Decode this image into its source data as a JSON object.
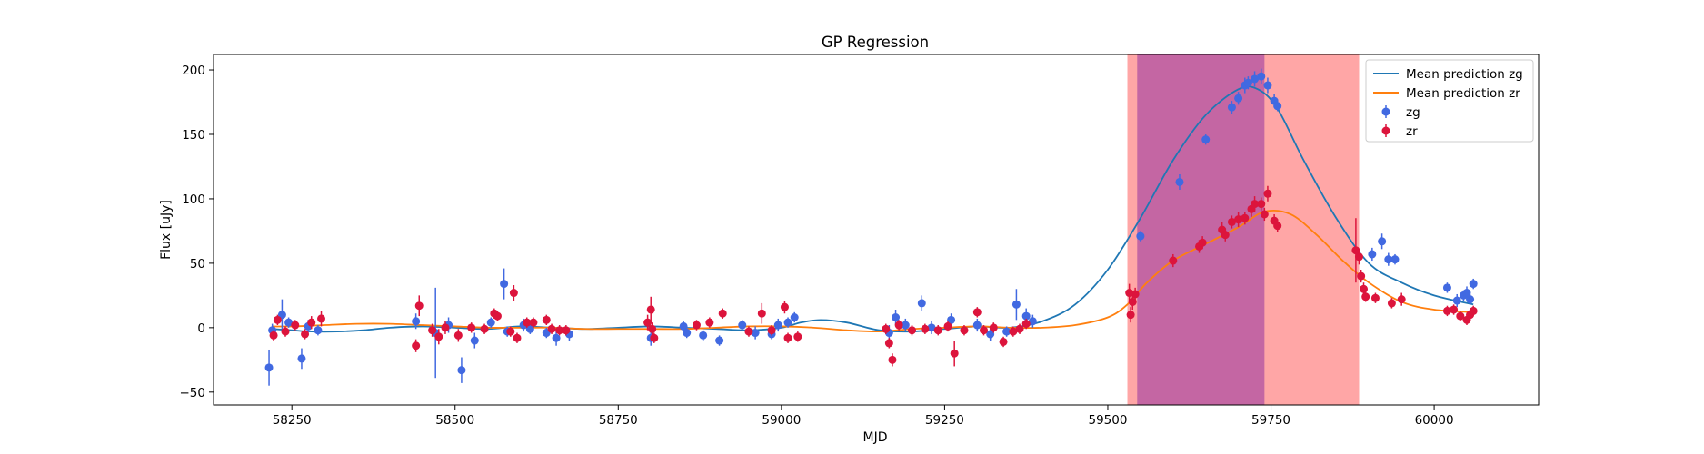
{
  "chart_data": {
    "type": "scatter",
    "title": "GP Regression",
    "xlabel": "MJD",
    "ylabel": "Flux [uJy]",
    "xlim": [
      58130,
      60160
    ],
    "ylim": [
      -60,
      212
    ],
    "xticks": [
      58250,
      58500,
      58750,
      59000,
      59250,
      59500,
      59750,
      60000
    ],
    "yticks": [
      -50,
      0,
      50,
      100,
      150,
      200
    ],
    "legend_position": "top-right",
    "grid": false,
    "shaded_regions": [
      {
        "x0": 59530,
        "x1": 59885,
        "color": "#ffa6a6"
      },
      {
        "x0": 59545,
        "x1": 59740,
        "color": "#c466a3"
      }
    ],
    "colors": {
      "zg_line": "#1f77b4",
      "zr_line": "#ff7f0e",
      "zg_points": "#4169e1",
      "zr_points": "#dc143c"
    },
    "lines": [
      {
        "name": "Mean prediction zg",
        "color": "#1f77b4",
        "x": [
          58220,
          58250,
          58280,
          58320,
          58360,
          58400,
          58450,
          58500,
          58550,
          58600,
          58650,
          58700,
          58750,
          58800,
          58850,
          58900,
          58950,
          59000,
          59030,
          59060,
          59100,
          59150,
          59200,
          59250,
          59300,
          59350,
          59400,
          59450,
          59500,
          59550,
          59600,
          59650,
          59700,
          59730,
          59760,
          59800,
          59850,
          59900,
          59950,
          60000,
          60060
        ],
        "y": [
          -1,
          -2,
          -3,
          -3,
          -2,
          0,
          1,
          0,
          -1,
          1,
          0,
          -1,
          0,
          1,
          0,
          -1,
          -2,
          0,
          4,
          6,
          4,
          -2,
          -3,
          -1,
          1,
          0,
          5,
          18,
          45,
          85,
          130,
          165,
          185,
          185,
          170,
          130,
          85,
          50,
          35,
          25,
          18
        ]
      },
      {
        "name": "Mean prediction zr",
        "color": "#ff7f0e",
        "x": [
          58220,
          58250,
          58300,
          58350,
          58400,
          58450,
          58500,
          58550,
          58600,
          58650,
          58700,
          58750,
          58800,
          58850,
          58900,
          58950,
          59000,
          59050,
          59100,
          59150,
          59200,
          59250,
          59300,
          59350,
          59400,
          59450,
          59500,
          59530,
          59560,
          59600,
          59650,
          59700,
          59740,
          59780,
          59820,
          59860,
          59900,
          59950,
          60000,
          60060
        ],
        "y": [
          1,
          1,
          2,
          3,
          3,
          2,
          1,
          0,
          0,
          0,
          -1,
          -1,
          -1,
          -1,
          0,
          1,
          1,
          0,
          -2,
          -3,
          -1,
          0,
          1,
          0,
          0,
          2,
          8,
          18,
          35,
          52,
          65,
          78,
          90,
          88,
          72,
          52,
          35,
          20,
          14,
          12
        ]
      }
    ],
    "series": [
      {
        "name": "zg",
        "color": "#4169e1",
        "points": [
          {
            "x": 58215,
            "y": -31,
            "err": 14
          },
          {
            "x": 58220,
            "y": -2,
            "err": 5
          },
          {
            "x": 58235,
            "y": 10,
            "err": 12
          },
          {
            "x": 58245,
            "y": 4,
            "err": 4
          },
          {
            "x": 58265,
            "y": -24,
            "err": 8
          },
          {
            "x": 58275,
            "y": 1,
            "err": 5
          },
          {
            "x": 58290,
            "y": -2,
            "err": 4
          },
          {
            "x": 58440,
            "y": 5,
            "err": 6
          },
          {
            "x": 58470,
            "y": -4,
            "err": 35
          },
          {
            "x": 58490,
            "y": 2,
            "err": 6
          },
          {
            "x": 58510,
            "y": -33,
            "err": 10
          },
          {
            "x": 58530,
            "y": -10,
            "err": 6
          },
          {
            "x": 58555,
            "y": 4,
            "err": 4
          },
          {
            "x": 58575,
            "y": 34,
            "err": 12
          },
          {
            "x": 58580,
            "y": -3,
            "err": 4
          },
          {
            "x": 58605,
            "y": 2,
            "err": 5
          },
          {
            "x": 58615,
            "y": -1,
            "err": 4
          },
          {
            "x": 58640,
            "y": -4,
            "err": 4
          },
          {
            "x": 58655,
            "y": -8,
            "err": 6
          },
          {
            "x": 58675,
            "y": -5,
            "err": 5
          },
          {
            "x": 58800,
            "y": -8,
            "err": 6
          },
          {
            "x": 58850,
            "y": 1,
            "err": 4
          },
          {
            "x": 58855,
            "y": -4,
            "err": 4
          },
          {
            "x": 58880,
            "y": -6,
            "err": 4
          },
          {
            "x": 58905,
            "y": -10,
            "err": 4
          },
          {
            "x": 58940,
            "y": 2,
            "err": 4
          },
          {
            "x": 58960,
            "y": -4,
            "err": 5
          },
          {
            "x": 58985,
            "y": -5,
            "err": 4
          },
          {
            "x": 58995,
            "y": 2,
            "err": 5
          },
          {
            "x": 59010,
            "y": 4,
            "err": 4
          },
          {
            "x": 59020,
            "y": 8,
            "err": 4
          },
          {
            "x": 59165,
            "y": -4,
            "err": 6
          },
          {
            "x": 59175,
            "y": 8,
            "err": 6
          },
          {
            "x": 59190,
            "y": 2,
            "err": 5
          },
          {
            "x": 59215,
            "y": 19,
            "err": 6
          },
          {
            "x": 59230,
            "y": 0,
            "err": 5
          },
          {
            "x": 59260,
            "y": 6,
            "err": 5
          },
          {
            "x": 59300,
            "y": 2,
            "err": 5
          },
          {
            "x": 59320,
            "y": -5,
            "err": 5
          },
          {
            "x": 59345,
            "y": -3,
            "err": 4
          },
          {
            "x": 59360,
            "y": 18,
            "err": 12
          },
          {
            "x": 59375,
            "y": 9,
            "err": 6
          },
          {
            "x": 59385,
            "y": 5,
            "err": 5
          },
          {
            "x": 59550,
            "y": 71,
            "err": 4
          },
          {
            "x": 59610,
            "y": 113,
            "err": 6
          },
          {
            "x": 59650,
            "y": 146,
            "err": 4
          },
          {
            "x": 59690,
            "y": 171,
            "err": 5
          },
          {
            "x": 59700,
            "y": 178,
            "err": 5
          },
          {
            "x": 59710,
            "y": 188,
            "err": 6
          },
          {
            "x": 59715,
            "y": 190,
            "err": 5
          },
          {
            "x": 59725,
            "y": 193,
            "err": 6
          },
          {
            "x": 59735,
            "y": 195,
            "err": 6
          },
          {
            "x": 59745,
            "y": 188,
            "err": 6
          },
          {
            "x": 59755,
            "y": 176,
            "err": 5
          },
          {
            "x": 59760,
            "y": 172,
            "err": 4
          },
          {
            "x": 59905,
            "y": 57,
            "err": 5
          },
          {
            "x": 59920,
            "y": 67,
            "err": 6
          },
          {
            "x": 59930,
            "y": 53,
            "err": 5
          },
          {
            "x": 59940,
            "y": 53,
            "err": 4
          },
          {
            "x": 60020,
            "y": 31,
            "err": 4
          },
          {
            "x": 60035,
            "y": 21,
            "err": 5
          },
          {
            "x": 60045,
            "y": 25,
            "err": 4
          },
          {
            "x": 60050,
            "y": 27,
            "err": 5
          },
          {
            "x": 60055,
            "y": 22,
            "err": 4
          },
          {
            "x": 60060,
            "y": 34,
            "err": 4
          }
        ]
      },
      {
        "name": "zr",
        "color": "#dc143c",
        "points": [
          {
            "x": 58222,
            "y": -6,
            "err": 4
          },
          {
            "x": 58228,
            "y": 6,
            "err": 4
          },
          {
            "x": 58240,
            "y": -3,
            "err": 4
          },
          {
            "x": 58255,
            "y": 2,
            "err": 4
          },
          {
            "x": 58270,
            "y": -5,
            "err": 4
          },
          {
            "x": 58280,
            "y": 4,
            "err": 5
          },
          {
            "x": 58295,
            "y": 7,
            "err": 6
          },
          {
            "x": 58440,
            "y": -14,
            "err": 5
          },
          {
            "x": 58445,
            "y": 17,
            "err": 8
          },
          {
            "x": 58465,
            "y": -2,
            "err": 5
          },
          {
            "x": 58475,
            "y": -7,
            "err": 6
          },
          {
            "x": 58485,
            "y": 0,
            "err": 5
          },
          {
            "x": 58505,
            "y": -6,
            "err": 5
          },
          {
            "x": 58525,
            "y": 0,
            "err": 4
          },
          {
            "x": 58545,
            "y": -1,
            "err": 4
          },
          {
            "x": 58560,
            "y": 11,
            "err": 4
          },
          {
            "x": 58565,
            "y": 9,
            "err": 4
          },
          {
            "x": 58585,
            "y": -3,
            "err": 4
          },
          {
            "x": 58590,
            "y": 27,
            "err": 6
          },
          {
            "x": 58595,
            "y": -8,
            "err": 4
          },
          {
            "x": 58610,
            "y": 4,
            "err": 4
          },
          {
            "x": 58620,
            "y": 4,
            "err": 4
          },
          {
            "x": 58640,
            "y": 6,
            "err": 4
          },
          {
            "x": 58648,
            "y": -1,
            "err": 4
          },
          {
            "x": 58660,
            "y": -2,
            "err": 4
          },
          {
            "x": 58670,
            "y": -2,
            "err": 4
          },
          {
            "x": 58795,
            "y": 4,
            "err": 6
          },
          {
            "x": 58800,
            "y": 14,
            "err": 10
          },
          {
            "x": 58802,
            "y": -1,
            "err": 5
          },
          {
            "x": 58805,
            "y": -8,
            "err": 4
          },
          {
            "x": 58870,
            "y": 2,
            "err": 4
          },
          {
            "x": 58890,
            "y": 4,
            "err": 4
          },
          {
            "x": 58910,
            "y": 11,
            "err": 4
          },
          {
            "x": 58950,
            "y": -3,
            "err": 4
          },
          {
            "x": 58970,
            "y": 11,
            "err": 8
          },
          {
            "x": 58985,
            "y": -2,
            "err": 4
          },
          {
            "x": 59005,
            "y": 16,
            "err": 5
          },
          {
            "x": 59010,
            "y": -8,
            "err": 4
          },
          {
            "x": 59025,
            "y": -7,
            "err": 4
          },
          {
            "x": 59160,
            "y": -1,
            "err": 4
          },
          {
            "x": 59165,
            "y": -12,
            "err": 4
          },
          {
            "x": 59170,
            "y": -25,
            "err": 5
          },
          {
            "x": 59180,
            "y": 2,
            "err": 4
          },
          {
            "x": 59200,
            "y": -2,
            "err": 4
          },
          {
            "x": 59220,
            "y": -1,
            "err": 4
          },
          {
            "x": 59240,
            "y": -2,
            "err": 4
          },
          {
            "x": 59255,
            "y": 1,
            "err": 4
          },
          {
            "x": 59265,
            "y": -20,
            "err": 10
          },
          {
            "x": 59280,
            "y": -2,
            "err": 4
          },
          {
            "x": 59300,
            "y": 12,
            "err": 4
          },
          {
            "x": 59310,
            "y": -2,
            "err": 4
          },
          {
            "x": 59325,
            "y": 0,
            "err": 4
          },
          {
            "x": 59340,
            "y": -11,
            "err": 4
          },
          {
            "x": 59355,
            "y": -3,
            "err": 4
          },
          {
            "x": 59365,
            "y": -1,
            "err": 4
          },
          {
            "x": 59375,
            "y": 3,
            "err": 4
          },
          {
            "x": 59533,
            "y": 27,
            "err": 7
          },
          {
            "x": 59535,
            "y": 10,
            "err": 6
          },
          {
            "x": 59538,
            "y": 20,
            "err": 6
          },
          {
            "x": 59542,
            "y": 26,
            "err": 5
          },
          {
            "x": 59600,
            "y": 52,
            "err": 5
          },
          {
            "x": 59640,
            "y": 63,
            "err": 5
          },
          {
            "x": 59645,
            "y": 66,
            "err": 5
          },
          {
            "x": 59675,
            "y": 76,
            "err": 6
          },
          {
            "x": 59680,
            "y": 72,
            "err": 5
          },
          {
            "x": 59690,
            "y": 82,
            "err": 5
          },
          {
            "x": 59700,
            "y": 84,
            "err": 6
          },
          {
            "x": 59710,
            "y": 85,
            "err": 5
          },
          {
            "x": 59720,
            "y": 92,
            "err": 6
          },
          {
            "x": 59725,
            "y": 96,
            "err": 6
          },
          {
            "x": 59735,
            "y": 96,
            "err": 5
          },
          {
            "x": 59740,
            "y": 88,
            "err": 5
          },
          {
            "x": 59745,
            "y": 104,
            "err": 6
          },
          {
            "x": 59755,
            "y": 83,
            "err": 5
          },
          {
            "x": 59760,
            "y": 79,
            "err": 5
          },
          {
            "x": 59880,
            "y": 60,
            "err": 25
          },
          {
            "x": 59885,
            "y": 55,
            "err": 6
          },
          {
            "x": 59888,
            "y": 40,
            "err": 5
          },
          {
            "x": 59892,
            "y": 30,
            "err": 5
          },
          {
            "x": 59895,
            "y": 24,
            "err": 4
          },
          {
            "x": 59910,
            "y": 23,
            "err": 4
          },
          {
            "x": 59935,
            "y": 19,
            "err": 4
          },
          {
            "x": 59950,
            "y": 22,
            "err": 5
          },
          {
            "x": 60020,
            "y": 13,
            "err": 4
          },
          {
            "x": 60030,
            "y": 14,
            "err": 4
          },
          {
            "x": 60040,
            "y": 9,
            "err": 4
          },
          {
            "x": 60050,
            "y": 6,
            "err": 4
          },
          {
            "x": 60055,
            "y": 10,
            "err": 4
          },
          {
            "x": 60060,
            "y": 13,
            "err": 4
          }
        ]
      }
    ]
  }
}
